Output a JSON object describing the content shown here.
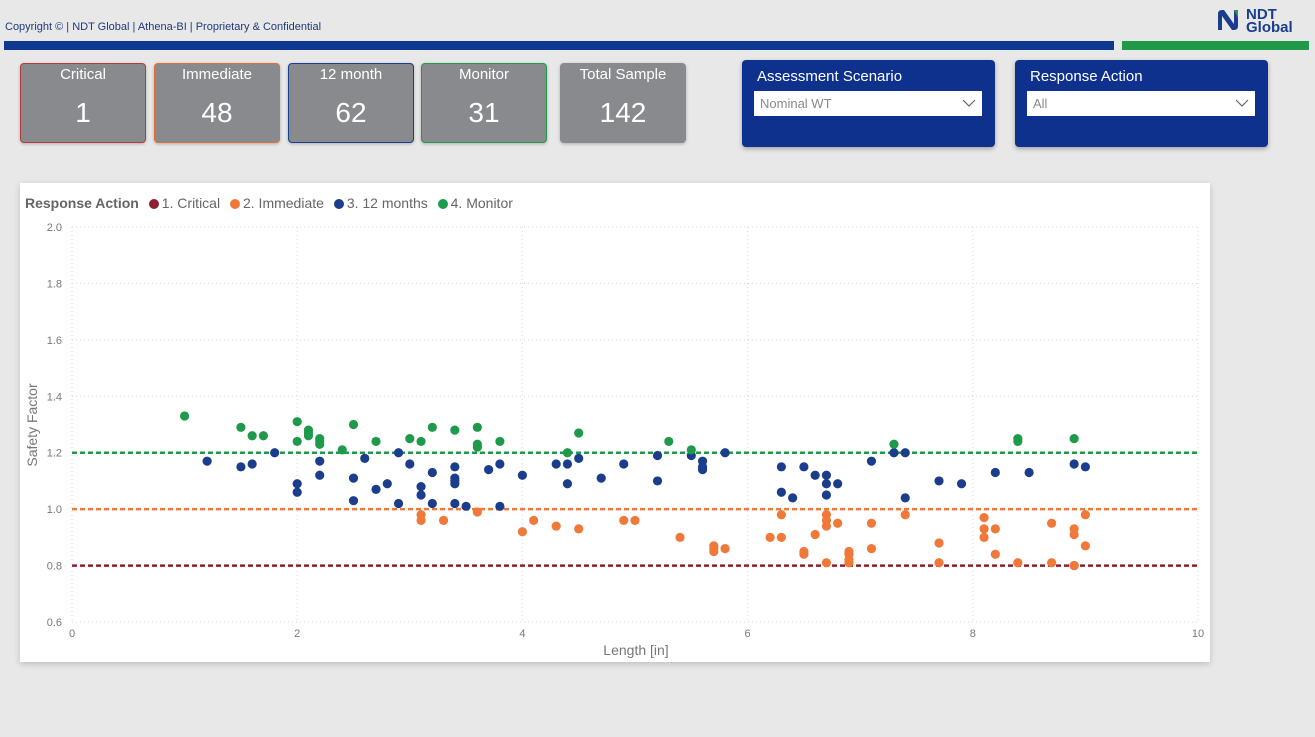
{
  "header": {
    "copyright": "Copyright © | NDT Global | Athena-BI | Proprietary & Confidential",
    "logo_line1": "NDT",
    "logo_line2": "Global"
  },
  "colors": {
    "critical": "#8e1f2f",
    "immediate": "#f07838",
    "months12": "#1a3d8c",
    "monitor": "#1e9a4a"
  },
  "kpis": [
    {
      "label": "Critical",
      "value": "1",
      "border": "#b23a40"
    },
    {
      "label": "Immediate",
      "value": "48",
      "border": "#e07030"
    },
    {
      "label": "12 month",
      "value": "62",
      "border": "#1a3d8c"
    },
    {
      "label": "Monitor",
      "value": "31",
      "border": "#1e9a4a"
    },
    {
      "label": "Total Sample",
      "value": "142",
      "border": "#888a8d"
    }
  ],
  "filters": {
    "scenario": {
      "title": "Assessment Scenario",
      "value": "Nominal WT"
    },
    "response": {
      "title": "Response Action",
      "value": "All"
    }
  },
  "legend": {
    "title": "Response Action",
    "items": [
      "1. Critical",
      "2. Immediate",
      "3. 12 months",
      "4. Monitor"
    ]
  },
  "chart_data": {
    "type": "scatter",
    "xlabel": "Length [in]",
    "ylabel": "Safety Factor",
    "xlim": [
      0,
      10
    ],
    "ylim": [
      0.6,
      2.0
    ],
    "xticks": [
      "0",
      "2",
      "4",
      "6",
      "8",
      "10"
    ],
    "yticks": [
      "0.6",
      "0.8",
      "1.0",
      "1.2",
      "1.4",
      "1.6",
      "1.8",
      "2.0"
    ],
    "reference_lines": [
      {
        "y": 0.8,
        "series": "1. Critical"
      },
      {
        "y": 1.0,
        "series": "2. Immediate"
      },
      {
        "y": 1.2,
        "series": "4. Monitor"
      }
    ],
    "series": [
      {
        "name": "1. Critical",
        "points": [
          [
            8.9,
            0.8
          ]
        ]
      },
      {
        "name": "2. Immediate",
        "points": [
          [
            3.1,
            0.98
          ],
          [
            3.1,
            0.96
          ],
          [
            3.3,
            0.96
          ],
          [
            3.6,
            0.99
          ],
          [
            4.0,
            0.92
          ],
          [
            4.1,
            0.96
          ],
          [
            4.3,
            0.94
          ],
          [
            4.5,
            0.93
          ],
          [
            4.9,
            0.96
          ],
          [
            5.0,
            0.96
          ],
          [
            5.4,
            0.9
          ],
          [
            5.7,
            0.87
          ],
          [
            5.7,
            0.85
          ],
          [
            5.8,
            0.86
          ],
          [
            6.2,
            0.9
          ],
          [
            6.3,
            0.9
          ],
          [
            6.3,
            0.98
          ],
          [
            6.5,
            0.85
          ],
          [
            6.5,
            0.84
          ],
          [
            6.6,
            0.91
          ],
          [
            6.7,
            0.98
          ],
          [
            6.7,
            0.96
          ],
          [
            6.7,
            0.94
          ],
          [
            6.7,
            0.81
          ],
          [
            6.8,
            0.95
          ],
          [
            6.9,
            0.85
          ],
          [
            6.9,
            0.82
          ],
          [
            6.9,
            0.81
          ],
          [
            7.1,
            0.95
          ],
          [
            7.1,
            0.86
          ],
          [
            7.4,
            0.98
          ],
          [
            7.7,
            0.88
          ],
          [
            7.7,
            0.81
          ],
          [
            8.1,
            0.97
          ],
          [
            8.1,
            0.93
          ],
          [
            8.1,
            0.9
          ],
          [
            8.2,
            0.93
          ],
          [
            8.2,
            0.84
          ],
          [
            8.4,
            0.81
          ],
          [
            8.7,
            0.95
          ],
          [
            8.7,
            0.81
          ],
          [
            8.9,
            0.93
          ],
          [
            8.9,
            0.91
          ],
          [
            8.9,
            0.8
          ],
          [
            9.0,
            0.98
          ],
          [
            9.0,
            0.87
          ],
          [
            5.7,
            0.86
          ],
          [
            6.9,
            0.84
          ]
        ]
      },
      {
        "name": "3. 12 months",
        "points": [
          [
            1.2,
            1.17
          ],
          [
            1.5,
            1.15
          ],
          [
            1.6,
            1.16
          ],
          [
            1.8,
            1.2
          ],
          [
            2.0,
            1.09
          ],
          [
            2.0,
            1.06
          ],
          [
            2.2,
            1.17
          ],
          [
            2.2,
            1.12
          ],
          [
            2.5,
            1.11
          ],
          [
            2.5,
            1.03
          ],
          [
            2.6,
            1.18
          ],
          [
            2.7,
            1.07
          ],
          [
            2.8,
            1.09
          ],
          [
            2.9,
            1.2
          ],
          [
            2.9,
            1.02
          ],
          [
            3.0,
            1.16
          ],
          [
            3.1,
            1.08
          ],
          [
            3.1,
            1.05
          ],
          [
            3.2,
            1.13
          ],
          [
            3.2,
            1.02
          ],
          [
            3.4,
            1.15
          ],
          [
            3.4,
            1.11
          ],
          [
            3.4,
            1.1
          ],
          [
            3.4,
            1.02
          ],
          [
            3.5,
            1.01
          ],
          [
            3.7,
            1.14
          ],
          [
            3.8,
            1.16
          ],
          [
            3.8,
            1.01
          ],
          [
            4.0,
            1.12
          ],
          [
            4.3,
            1.16
          ],
          [
            4.4,
            1.16
          ],
          [
            4.4,
            1.09
          ],
          [
            4.5,
            1.18
          ],
          [
            4.7,
            1.11
          ],
          [
            4.9,
            1.16
          ],
          [
            5.2,
            1.19
          ],
          [
            5.2,
            1.1
          ],
          [
            5.5,
            1.19
          ],
          [
            5.6,
            1.17
          ],
          [
            5.6,
            1.15
          ],
          [
            5.8,
            1.2
          ],
          [
            6.3,
            1.15
          ],
          [
            6.3,
            1.06
          ],
          [
            6.4,
            1.04
          ],
          [
            6.5,
            1.15
          ],
          [
            6.6,
            1.12
          ],
          [
            6.7,
            1.12
          ],
          [
            6.7,
            1.09
          ],
          [
            6.7,
            1.05
          ],
          [
            6.8,
            1.09
          ],
          [
            7.1,
            1.17
          ],
          [
            7.3,
            1.2
          ],
          [
            7.4,
            1.2
          ],
          [
            7.4,
            1.04
          ],
          [
            7.7,
            1.1
          ],
          [
            7.9,
            1.09
          ],
          [
            8.2,
            1.13
          ],
          [
            8.5,
            1.13
          ],
          [
            8.9,
            1.16
          ],
          [
            9.0,
            1.15
          ],
          [
            5.6,
            1.14
          ],
          [
            3.4,
            1.09
          ]
        ]
      },
      {
        "name": "4. Monitor",
        "points": [
          [
            1.0,
            1.33
          ],
          [
            1.5,
            1.29
          ],
          [
            1.6,
            1.26
          ],
          [
            1.7,
            1.26
          ],
          [
            2.0,
            1.31
          ],
          [
            2.0,
            1.24
          ],
          [
            2.1,
            1.27
          ],
          [
            2.1,
            1.26
          ],
          [
            2.2,
            1.25
          ],
          [
            2.2,
            1.24
          ],
          [
            2.4,
            1.21
          ],
          [
            2.5,
            1.3
          ],
          [
            2.7,
            1.24
          ],
          [
            3.0,
            1.25
          ],
          [
            3.1,
            1.24
          ],
          [
            3.2,
            1.29
          ],
          [
            3.4,
            1.28
          ],
          [
            3.6,
            1.29
          ],
          [
            3.6,
            1.22
          ],
          [
            3.8,
            1.24
          ],
          [
            4.4,
            1.2
          ],
          [
            4.5,
            1.27
          ],
          [
            5.3,
            1.24
          ],
          [
            5.5,
            1.21
          ],
          [
            7.3,
            1.23
          ],
          [
            8.4,
            1.25
          ],
          [
            8.4,
            1.24
          ],
          [
            8.9,
            1.25
          ],
          [
            2.2,
            1.23
          ],
          [
            3.6,
            1.23
          ],
          [
            2.1,
            1.28
          ]
        ]
      }
    ]
  }
}
